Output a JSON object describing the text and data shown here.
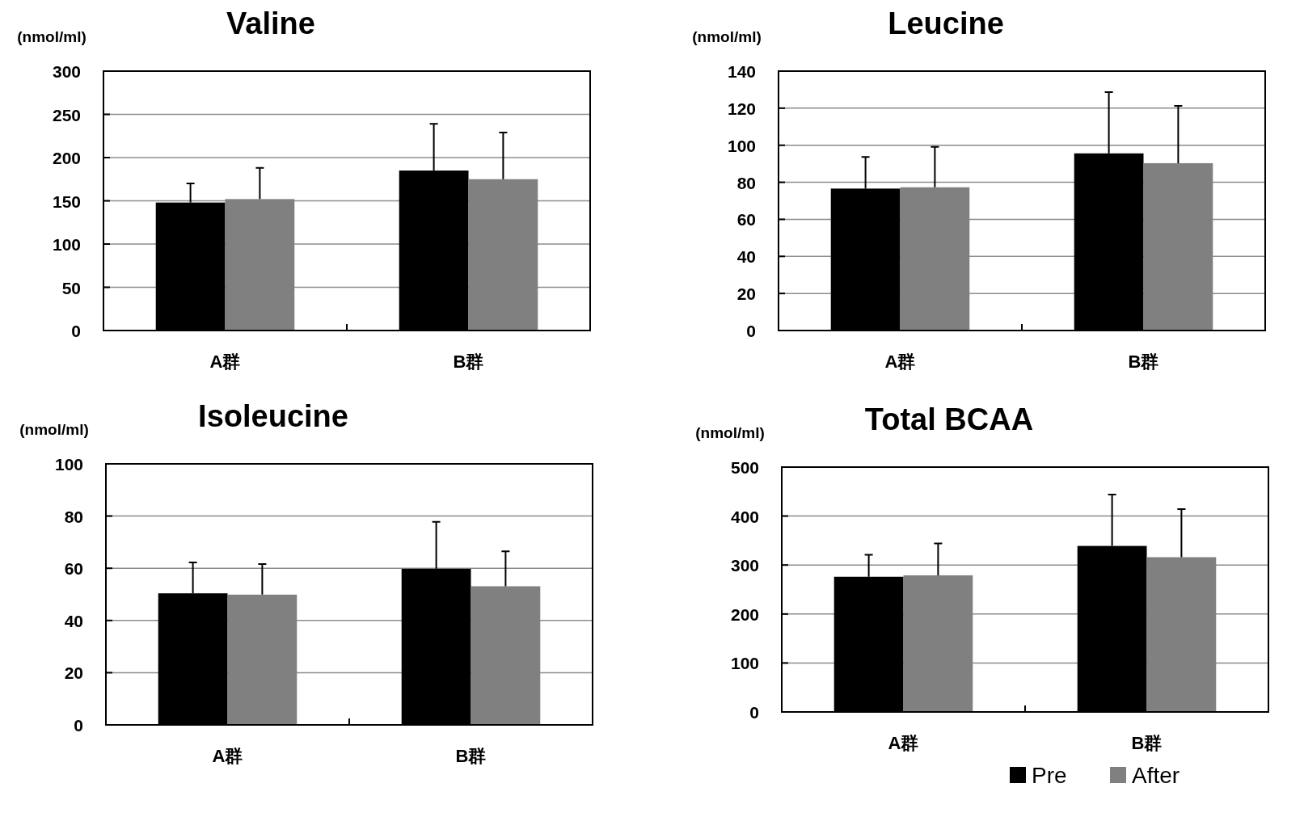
{
  "chart_data": [
    {
      "type": "bar",
      "title": "Valine",
      "ylabel": "(nmol/ml)",
      "categories": [
        "A群",
        "B群"
      ],
      "ylim": [
        0,
        300
      ],
      "yticks": [
        0,
        50,
        100,
        150,
        200,
        250,
        300
      ],
      "grid": "y",
      "legend": false,
      "series": [
        {
          "color": "#000000",
          "values": [
            148,
            185
          ],
          "errors": [
            [
              148,
              170
            ],
            [
              185,
              239
            ]
          ]
        },
        {
          "color": "#808080",
          "values": [
            152,
            175
          ],
          "errors": [
            [
              152,
              188
            ],
            [
              175,
              229
            ]
          ]
        }
      ]
    },
    {
      "type": "bar",
      "title": "Leucine",
      "ylabel": "(nmol/ml)",
      "categories": [
        "A群",
        "B群"
      ],
      "ylim": [
        0,
        140
      ],
      "yticks": [
        0,
        20,
        40,
        60,
        80,
        100,
        120,
        140
      ],
      "grid": "y",
      "legend": false,
      "series": [
        {
          "color": "#000000",
          "values": [
            76.6,
            95.6
          ],
          "errors": [
            [
              76.6,
              93.7
            ],
            [
              95.6,
              128.7
            ]
          ]
        },
        {
          "color": "#808080",
          "values": [
            77.3,
            90.3
          ],
          "errors": [
            [
              77.3,
              99.1
            ],
            [
              90.3,
              121.2
            ]
          ]
        }
      ]
    },
    {
      "type": "bar",
      "title": "Isoleucine",
      "ylabel": "(nmol/ml)",
      "categories": [
        "A群",
        "B群"
      ],
      "ylim": [
        0,
        100
      ],
      "yticks": [
        0,
        20,
        40,
        60,
        80,
        100
      ],
      "grid": "y",
      "legend": false,
      "series": [
        {
          "color": "#000000",
          "values": [
            50.4,
            59.8
          ],
          "errors": [
            [
              50.4,
              62.2
            ],
            [
              59.8,
              77.8
            ]
          ]
        },
        {
          "color": "#808080",
          "values": [
            49.9,
            53.1
          ],
          "errors": [
            [
              49.9,
              61.6
            ],
            [
              53.1,
              66.5
            ]
          ]
        }
      ]
    },
    {
      "type": "bar",
      "title": "Total BCAA",
      "ylabel": "(nmol/ml)",
      "categories": [
        "A群",
        "B群"
      ],
      "ylim": [
        0,
        500
      ],
      "yticks": [
        0,
        100,
        200,
        300,
        400,
        500
      ],
      "grid": "y",
      "legend": "bottom right",
      "series": [
        {
          "name": "Pre",
          "color": "#000000",
          "values": [
            276,
            339
          ],
          "errors": [
            [
              276,
              321
            ],
            [
              339,
              444
            ]
          ]
        },
        {
          "name": "After",
          "color": "#808080",
          "values": [
            279,
            316
          ],
          "errors": [
            [
              279,
              344
            ],
            [
              316,
              414
            ]
          ]
        }
      ]
    }
  ]
}
